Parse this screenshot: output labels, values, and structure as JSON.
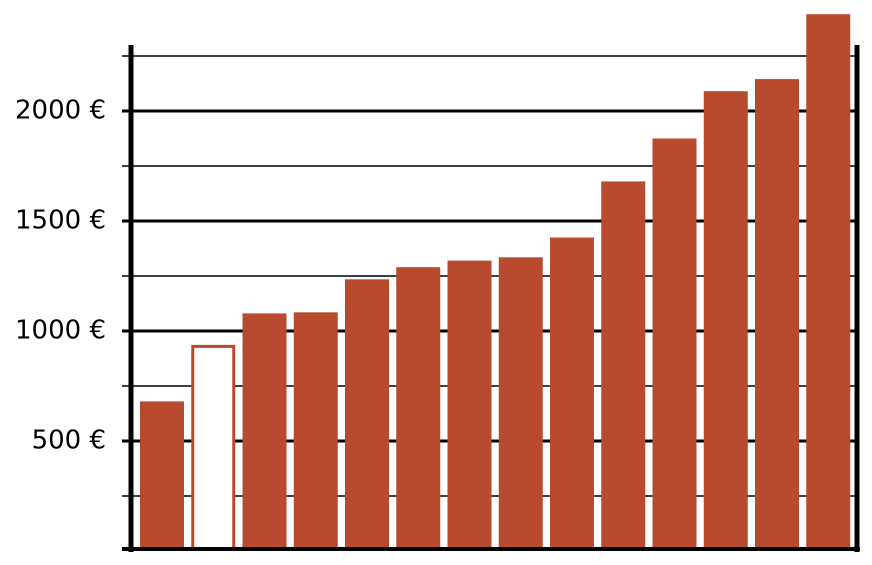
{
  "chart_data": {
    "type": "bar",
    "categories": [
      null,
      null,
      null,
      null,
      null,
      null,
      null,
      null,
      null,
      null,
      null,
      null,
      null,
      null
    ],
    "values": [
      680,
      930,
      1080,
      1085,
      1235,
      1290,
      1320,
      1335,
      1425,
      1680,
      1875,
      2090,
      2145,
      2440
    ],
    "color": "#b84a2e",
    "highlight_index": 1,
    "ylim": [
      0,
      2300
    ],
    "yticks": [
      {
        "value": 500,
        "label": "500 €"
      },
      {
        "value": 1000,
        "label": "1000 €"
      },
      {
        "value": 1500,
        "label": "1500 €"
      },
      {
        "value": 2000,
        "label": "2000 €"
      }
    ],
    "minor_yticks": [
      250,
      750,
      1250,
      1750,
      2250
    ],
    "grid": true
  }
}
